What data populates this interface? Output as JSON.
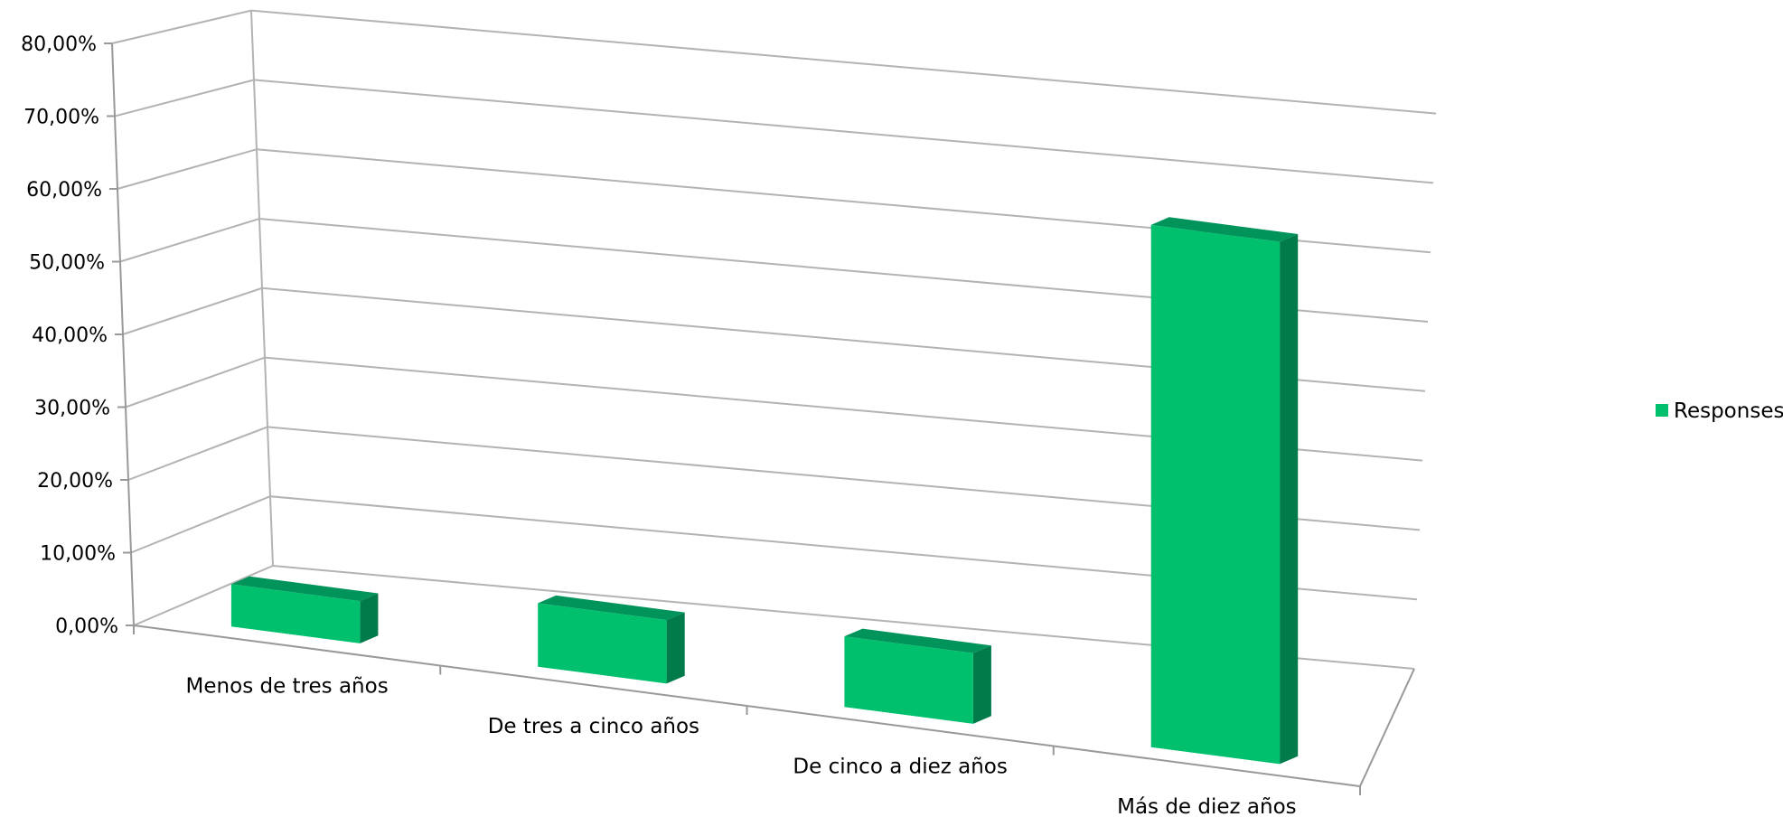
{
  "chart_data": {
    "type": "bar",
    "view": "3d",
    "categories": [
      "Menos de tres años",
      "De tres a cinco años",
      "De cinco a diez años",
      "Más de diez años"
    ],
    "series": [
      {
        "name": "Responses",
        "values": [
          0.06,
          0.09,
          0.1,
          0.74
        ]
      }
    ],
    "ylim": [
      0,
      0.8
    ],
    "yticks": [
      "0,00%",
      "10,00%",
      "20,00%",
      "30,00%",
      "40,00%",
      "50,00%",
      "60,00%",
      "70,00%",
      "80,00%"
    ],
    "grid": true,
    "legend": "right",
    "colors": {
      "bar_front": "#00c06e",
      "bar_top": "#00935a",
      "bar_side": "#007b49",
      "grid": "#b3b3b3",
      "axis": "#999999"
    }
  }
}
